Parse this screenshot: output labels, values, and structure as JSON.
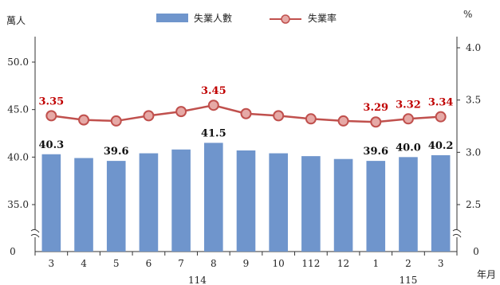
{
  "chart_data": {
    "type": "bar",
    "left_unit": "萬人",
    "right_unit": "%",
    "x_unit": "年月",
    "categories": [
      "3",
      "4",
      "5",
      "6",
      "7",
      "8",
      "9",
      "10",
      "112",
      "12",
      "1",
      "2",
      "3"
    ],
    "year_groups": [
      {
        "label": "114",
        "start": 0,
        "end": 9
      },
      {
        "label": "115",
        "start": 10,
        "end": 12
      }
    ],
    "left_axis": {
      "ticks": [
        "50.0",
        "45.0",
        "40.0",
        "35.0",
        "0"
      ],
      "tick_values": [
        50,
        45,
        40,
        35
      ],
      "ylim": [
        30,
        52
      ],
      "broken": true
    },
    "right_axis": {
      "ticks": [
        "4.0",
        "3.5",
        "3.0",
        "2.5",
        "0"
      ],
      "tick_values": [
        4.0,
        3.5,
        3.0,
        2.5
      ],
      "ylim": [
        2.0,
        4.2
      ],
      "broken": true
    },
    "series": [
      {
        "name": "失業人數",
        "kind": "bar",
        "axis": "left",
        "color": "#6f95cc",
        "values": [
          40.3,
          39.9,
          39.6,
          40.4,
          40.8,
          41.5,
          40.7,
          40.4,
          40.1,
          39.8,
          39.6,
          40.0,
          40.2
        ],
        "data_labels": [
          {
            "index": 0,
            "text": "40.3"
          },
          {
            "index": 2,
            "text": "39.6"
          },
          {
            "index": 5,
            "text": "41.5"
          },
          {
            "index": 10,
            "text": "39.6"
          },
          {
            "index": 11,
            "text": "40.0"
          },
          {
            "index": 12,
            "text": "40.2"
          }
        ]
      },
      {
        "name": "失業率",
        "kind": "line",
        "axis": "right",
        "color": "#c0504d",
        "marker_fill": "#e6a9a6",
        "values": [
          3.35,
          3.31,
          3.3,
          3.35,
          3.39,
          3.45,
          3.37,
          3.35,
          3.32,
          3.3,
          3.29,
          3.32,
          3.34
        ],
        "data_labels": [
          {
            "index": 0,
            "text": "3.35"
          },
          {
            "index": 5,
            "text": "3.45"
          },
          {
            "index": 10,
            "text": "3.29"
          },
          {
            "index": 11,
            "text": "3.32"
          },
          {
            "index": 12,
            "text": "3.34"
          }
        ]
      }
    ],
    "legend_position": "top-center",
    "grid": false
  }
}
